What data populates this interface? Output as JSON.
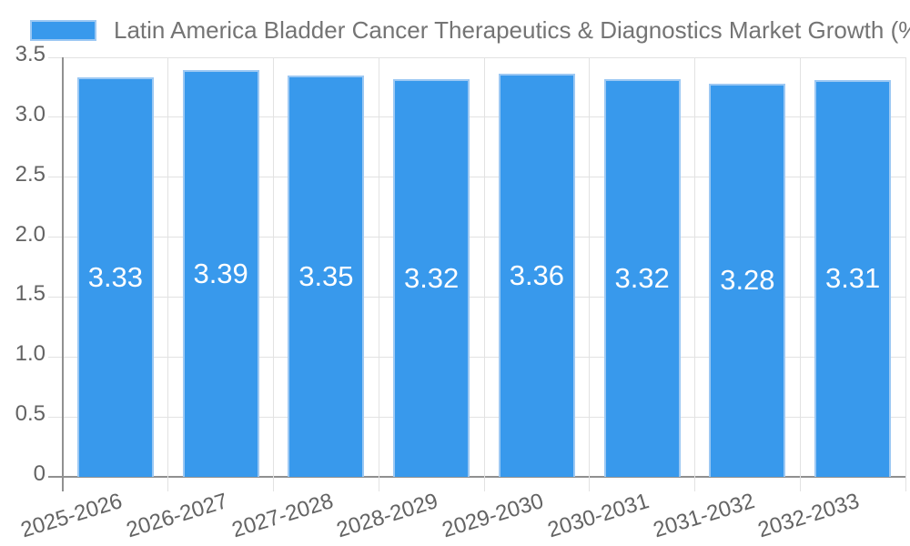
{
  "chart_data": {
    "type": "bar",
    "title": "Latin America Bladder Cancer Therapeutics & Diagnostics Market Growth (%)",
    "categories": [
      "2025-2026",
      "2026-2027",
      "2027-2028",
      "2028-2029",
      "2029-2030",
      "2030-2031",
      "2031-2032",
      "2032-2033"
    ],
    "values": [
      3.33,
      3.39,
      3.35,
      3.32,
      3.36,
      3.32,
      3.28,
      3.31
    ],
    "value_labels": [
      "3.33",
      "3.39",
      "3.35",
      "3.32",
      "3.36",
      "3.32",
      "3.28",
      "3.31"
    ],
    "xlabel": "",
    "ylabel": "",
    "ylim": [
      0,
      3.5
    ],
    "yticks": [
      0,
      0.5,
      1,
      1.5,
      2,
      2.5,
      3,
      3.5
    ],
    "ytick_labels": [
      "0",
      "0.5",
      "1.0",
      "1.5",
      "2.0",
      "2.5",
      "3.0",
      "3.5"
    ],
    "grid": true,
    "legend_position": "top",
    "bar_color": "#3899ec",
    "bar_border_color": "#9cc8f3",
    "value_label_color": "#ffffff",
    "tick_color": "#636363",
    "title_color": "#747474",
    "gridline_color": "#e2e2e2",
    "axis_line_color": "#909090",
    "background_color": "#ffffff"
  }
}
